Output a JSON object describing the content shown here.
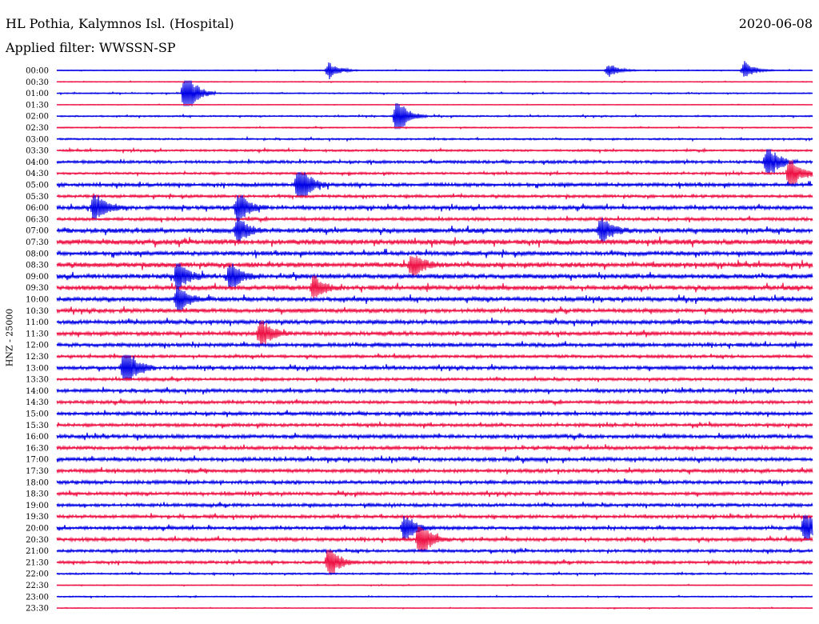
{
  "header": {
    "station": "HL Pothia, Kalymnos Isl. (Hospital)",
    "date": "2020-06-08",
    "filter": "Applied filter: WWSSN-SP"
  },
  "channel_label": "HNZ - 25000",
  "colors": {
    "even_trace": "#0000e6",
    "odd_trace": "#ee1144"
  },
  "rows": [
    "00:00",
    "00:30",
    "01:00",
    "01:30",
    "02:00",
    "02:30",
    "03:00",
    "03:30",
    "04:00",
    "04:30",
    "05:00",
    "05:30",
    "06:00",
    "06:30",
    "07:00",
    "07:30",
    "08:00",
    "08:30",
    "09:00",
    "09:30",
    "10:00",
    "10:30",
    "11:00",
    "11:30",
    "12:00",
    "12:30",
    "13:00",
    "13:30",
    "14:00",
    "14:30",
    "15:00",
    "15:30",
    "16:00",
    "16:30",
    "17:00",
    "17:30",
    "18:00",
    "18:30",
    "19:00",
    "19:30",
    "20:00",
    "20:30",
    "21:00",
    "21:30",
    "22:00",
    "22:30",
    "23:00",
    "23:30"
  ],
  "noise_levels": [
    0.15,
    0.15,
    0.2,
    0.12,
    0.25,
    0.2,
    0.3,
    0.35,
    0.5,
    0.4,
    0.6,
    0.5,
    0.65,
    0.55,
    0.8,
    0.9,
    0.75,
    0.85,
    0.8,
    0.8,
    0.75,
    0.7,
    0.7,
    0.7,
    0.65,
    0.5,
    0.6,
    0.5,
    0.6,
    0.55,
    0.6,
    0.55,
    0.65,
    0.6,
    0.65,
    0.6,
    0.6,
    0.55,
    0.55,
    0.55,
    0.55,
    0.6,
    0.5,
    0.5,
    0.3,
    0.15,
    0.2,
    0.15
  ],
  "events": [
    {
      "row": 0,
      "time": 0.36,
      "amp": 0.5
    },
    {
      "row": 0,
      "time": 0.73,
      "amp": 0.4
    },
    {
      "row": 0,
      "time": 0.91,
      "amp": 0.5
    },
    {
      "row": 2,
      "time": 0.17,
      "amp": 1.6
    },
    {
      "row": 4,
      "time": 0.45,
      "amp": 1.2
    },
    {
      "row": 8,
      "time": 0.94,
      "amp": 1.1
    },
    {
      "row": 9,
      "time": 0.97,
      "amp": 1.0
    },
    {
      "row": 10,
      "time": 0.32,
      "amp": 1.4
    },
    {
      "row": 12,
      "time": 0.05,
      "amp": 1.0
    },
    {
      "row": 12,
      "time": 0.24,
      "amp": 1.0
    },
    {
      "row": 14,
      "time": 0.24,
      "amp": 0.8
    },
    {
      "row": 14,
      "time": 0.72,
      "amp": 0.8
    },
    {
      "row": 17,
      "time": 0.47,
      "amp": 0.8
    },
    {
      "row": 18,
      "time": 0.16,
      "amp": 0.9
    },
    {
      "row": 18,
      "time": 0.23,
      "amp": 0.9
    },
    {
      "row": 19,
      "time": 0.34,
      "amp": 0.7
    },
    {
      "row": 20,
      "time": 0.16,
      "amp": 0.8
    },
    {
      "row": 23,
      "time": 0.27,
      "amp": 1.0
    },
    {
      "row": 26,
      "time": 0.09,
      "amp": 1.6
    },
    {
      "row": 40,
      "time": 0.46,
      "amp": 0.9
    },
    {
      "row": 40,
      "time": 0.99,
      "amp": 1.0
    },
    {
      "row": 41,
      "time": 0.48,
      "amp": 1.1
    },
    {
      "row": 43,
      "time": 0.36,
      "amp": 1.0
    }
  ]
}
